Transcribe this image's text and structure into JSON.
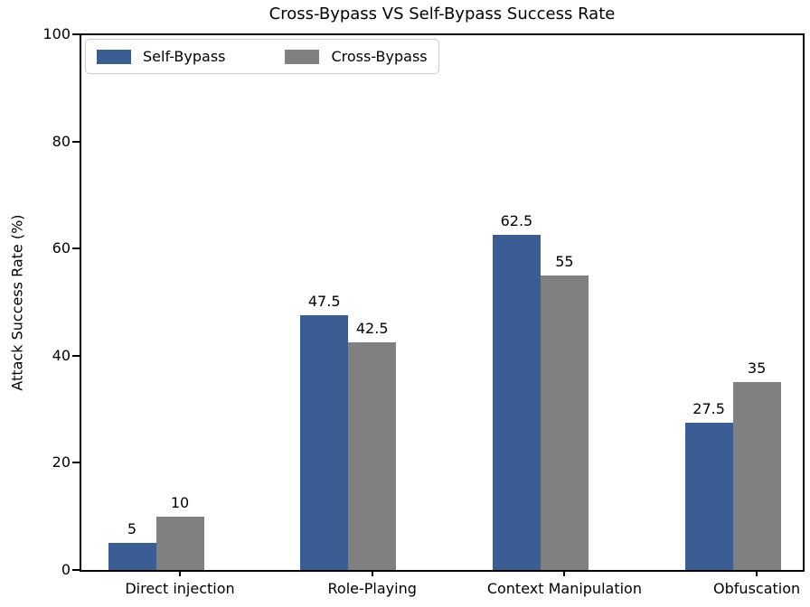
{
  "chart_data": {
    "type": "bar",
    "title": "Cross-Bypass VS Self-Bypass Success Rate",
    "xlabel": "",
    "ylabel": "Attack Success Rate (%)",
    "categories": [
      "Direct injection",
      "Role-Playing",
      "Context Manipulation",
      "Obfuscation"
    ],
    "series": [
      {
        "name": "Self-Bypass",
        "color": "#3A5E94",
        "values": [
          5,
          47.5,
          62.5,
          27.5
        ]
      },
      {
        "name": "Cross-Bypass",
        "color": "#808080",
        "values": [
          10,
          42.5,
          55,
          35
        ]
      }
    ],
    "value_labels": [
      [
        "5",
        "47.5",
        "62.5",
        "27.5"
      ],
      [
        "10",
        "42.5",
        "55",
        "35"
      ]
    ],
    "ylim": [
      0,
      100
    ],
    "yticks": [
      0,
      20,
      40,
      60,
      80,
      100
    ],
    "grid": false,
    "legend_position": "upper-left",
    "colors": {
      "spine": "#000000",
      "legend_border": "#cccccc",
      "background": "#ffffff"
    }
  }
}
